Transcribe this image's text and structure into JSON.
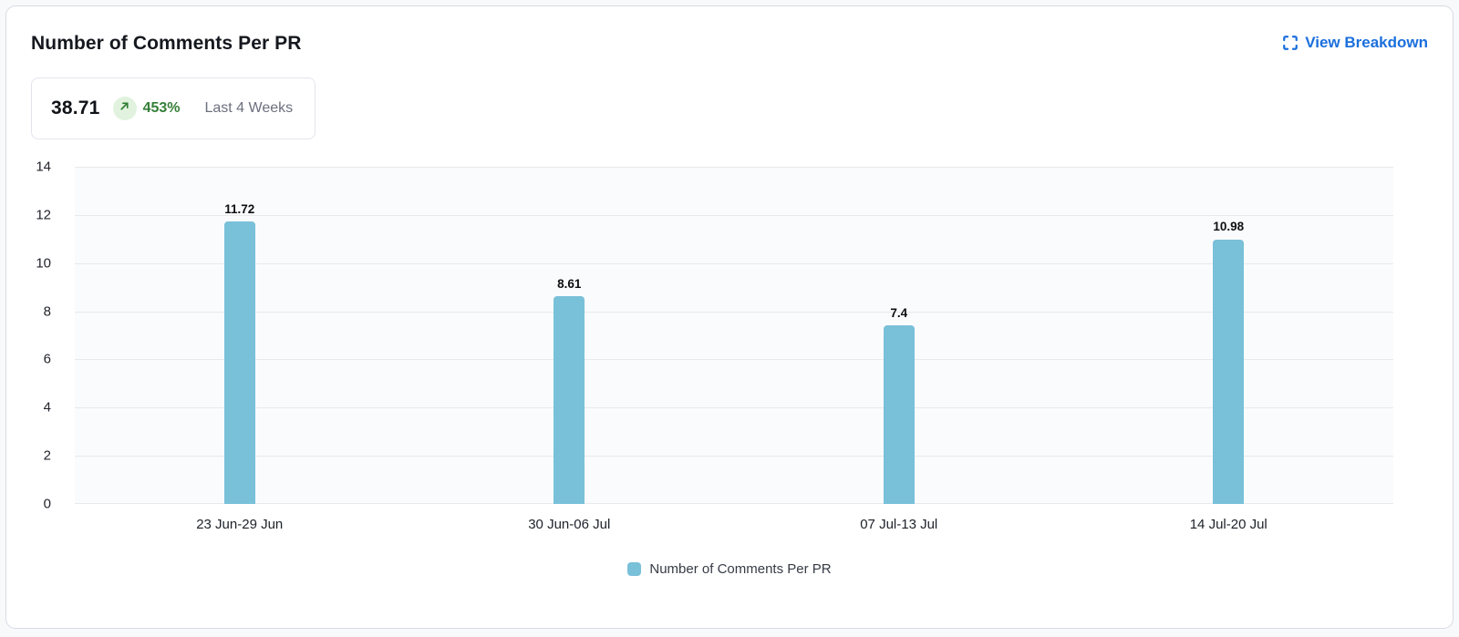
{
  "header": {
    "title": "Number of Comments Per PR",
    "view_breakdown_label": "View Breakdown"
  },
  "stat": {
    "value": "38.71",
    "change": "453%",
    "trend": "up",
    "period": "Last 4 Weeks"
  },
  "chart_data": {
    "type": "bar",
    "title": "Number of Comments Per PR",
    "categories": [
      "23 Jun-29 Jun",
      "30 Jun-06 Jul",
      "07 Jul-13 Jul",
      "14 Jul-20 Jul"
    ],
    "values": [
      11.72,
      8.61,
      7.4,
      10.98
    ],
    "value_labels": [
      "11.72",
      "8.61",
      "7.4",
      "10.98"
    ],
    "xlabel": "",
    "ylabel": "",
    "ylim": [
      0,
      14
    ],
    "ytick_step": 2,
    "yticks": [
      0,
      2,
      4,
      6,
      8,
      10,
      12,
      14
    ],
    "grid": true,
    "legend": {
      "position": "bottom",
      "entries": [
        "Number of Comments Per PR"
      ]
    }
  },
  "colors": {
    "bar": "#79c0d9",
    "link": "#1b6fdd",
    "positive": "#357f38",
    "positive_bg": "#e1f3de",
    "plot_bg": "#fafbfd",
    "gridline": "#e7e9ee",
    "card_border": "#d7dbe4",
    "page_bg": "#f8f9fb"
  }
}
